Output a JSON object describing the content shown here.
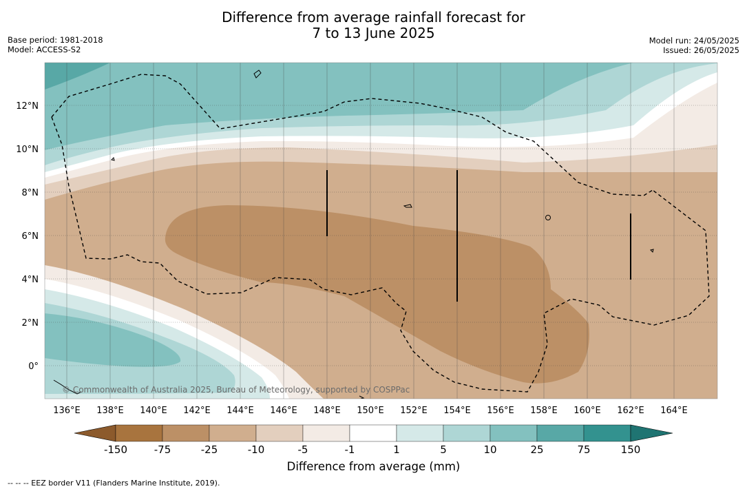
{
  "title": {
    "line1": "Difference from average rainfall forecast for",
    "line2": "7 to 13 June 2025"
  },
  "meta_left": {
    "base_period": "Base period: 1981-2018",
    "model": "Model: ACCESS-S2"
  },
  "meta_right": {
    "model_run": "Model run: 24/05/2025",
    "issued": "Issued: 26/05/2025"
  },
  "map": {
    "lon_range": [
      135,
      166
    ],
    "lat_range": [
      -1.5,
      14
    ],
    "x_ticks": [
      "136°E",
      "138°E",
      "140°E",
      "142°E",
      "144°E",
      "146°E",
      "148°E",
      "150°E",
      "152°E",
      "154°E",
      "156°E",
      "158°E",
      "160°E",
      "162°E",
      "164°E"
    ],
    "y_ticks": [
      "12°N",
      "10°N",
      "8°N",
      "6°N",
      "4°N",
      "2°N",
      "0°"
    ],
    "copyright": "© Commonwealth of Australia 2025, Bureau of Meteorology, supported by COSPPac",
    "grid": true
  },
  "colorbar": {
    "labels": [
      "-150",
      "-75",
      "-25",
      "-10",
      "-5",
      "-1",
      "1",
      "5",
      "10",
      "25",
      "75",
      "150"
    ],
    "colors": [
      "#a8743e",
      "#bc9066",
      "#d0ae8e",
      "#e3cfbe",
      "#f3ebe5",
      "#ffffff",
      "#d5e9e8",
      "#aed6d5",
      "#83c1bf",
      "#58a8a6",
      "#33928f"
    ],
    "under_color": "#8c5a2c",
    "over_color": "#1f7472",
    "title": "Difference from average (mm)"
  },
  "footnote": "--  --  -- EEZ border V11 (Flanders Marine Institute, 2019)."
}
